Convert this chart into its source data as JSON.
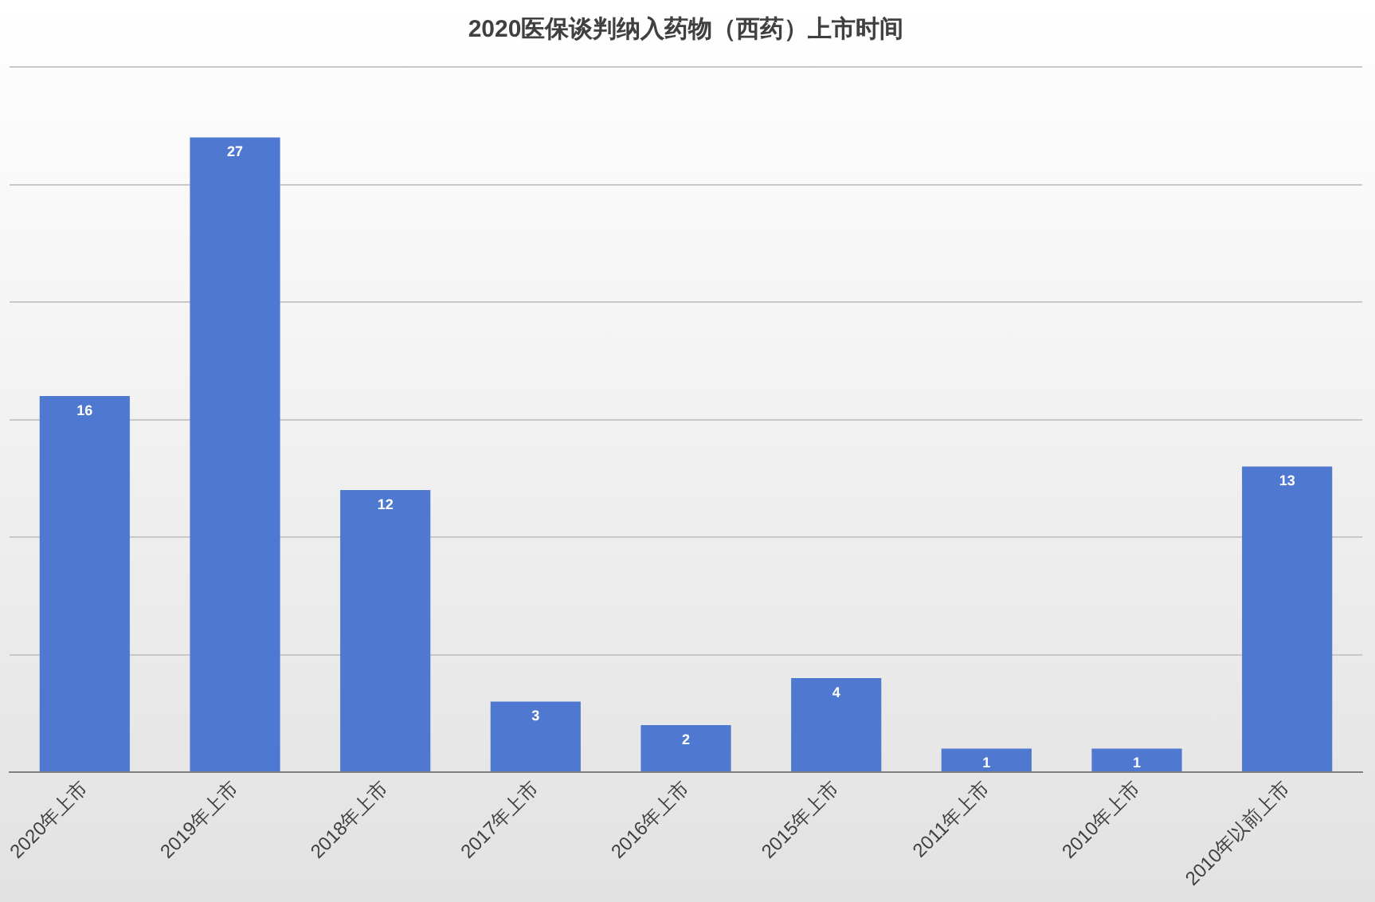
{
  "chart_data": {
    "type": "bar",
    "title": "2020医保谈判纳入药物（西药）上市时间",
    "categories": [
      "2020年上市",
      "2019年上市",
      "2018年上市",
      "2017年上市",
      "2016年上市",
      "2015年上市",
      "2011年上市",
      "2010年上市",
      "2010年以前上市"
    ],
    "values": [
      16,
      27,
      12,
      3,
      2,
      4,
      1,
      1,
      13
    ],
    "color": "#4f79d0",
    "ylim": [
      0,
      30
    ],
    "yticks": [
      {
        "value": 0,
        "label": null
      },
      {
        "value": 5,
        "label": null
      },
      {
        "value": 10,
        "label": null
      },
      {
        "value": 15,
        "label": null
      },
      {
        "value": 20,
        "label": null
      },
      {
        "value": 25,
        "label": null
      },
      {
        "value": 30,
        "label": null
      }
    ],
    "grid": "y",
    "tick_labels": "x",
    "data_labels": true,
    "legend": false
  }
}
